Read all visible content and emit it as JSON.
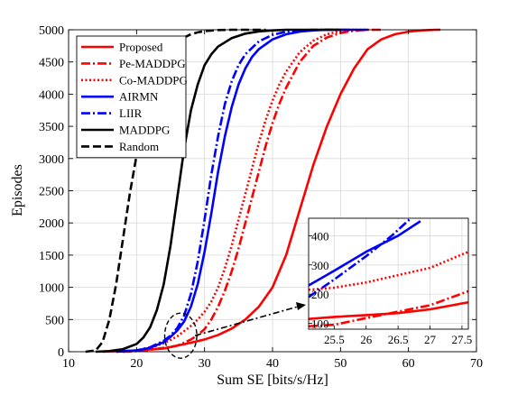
{
  "chart_data": {
    "type": "line",
    "title": "",
    "xlabel": "Sum SE [bits/s/Hz]",
    "ylabel": "Episodes",
    "xlim": [
      10,
      70
    ],
    "ylim": [
      0,
      5000
    ],
    "xticks": [
      10,
      20,
      30,
      40,
      50,
      60,
      70
    ],
    "yticks": [
      0,
      500,
      1000,
      1500,
      2000,
      2500,
      3000,
      3500,
      4000,
      4500,
      5000
    ],
    "grid": true,
    "legend_position": "top-left",
    "series": [
      {
        "name": "Proposed",
        "color": "#ff0000",
        "dash": "solid",
        "x": [
          15,
          20,
          24,
          26,
          28,
          30,
          32,
          34,
          36,
          38,
          40,
          42,
          44,
          46,
          48,
          50,
          52,
          54,
          56,
          58,
          60,
          62,
          64,
          64.7
        ],
        "y": [
          0,
          20,
          50,
          95,
          140,
          190,
          260,
          360,
          500,
          700,
          1000,
          1500,
          2200,
          2900,
          3500,
          4000,
          4400,
          4700,
          4850,
          4930,
          4970,
          4990,
          5000,
          5000
        ]
      },
      {
        "name": "Pe-MADDPG",
        "color": "#ff0000",
        "dash": "dashdot",
        "x": [
          18,
          20,
          22,
          24,
          25,
          26,
          27,
          28,
          29,
          30,
          31,
          32,
          33,
          34,
          35,
          36,
          37,
          38,
          39,
          40,
          41,
          42,
          44,
          46,
          48,
          50,
          52,
          54,
          56
        ],
        "y": [
          0,
          10,
          30,
          60,
          75,
          95,
          140,
          190,
          260,
          350,
          500,
          700,
          950,
          1250,
          1600,
          2000,
          2400,
          2800,
          3200,
          3550,
          3850,
          4100,
          4500,
          4750,
          4880,
          4950,
          4985,
          5000,
          5000
        ]
      },
      {
        "name": "Co-MADDPG",
        "color": "#ff0000",
        "dash": "dotted",
        "x": [
          18,
          20,
          22,
          24,
          25,
          26,
          27,
          28,
          29,
          30,
          31,
          32,
          33,
          34,
          35,
          36,
          37,
          38,
          39,
          40,
          41,
          42,
          44,
          46,
          48,
          50,
          52,
          54
        ],
        "y": [
          0,
          15,
          60,
          130,
          180,
          240,
          320,
          400,
          500,
          620,
          780,
          1000,
          1300,
          1650,
          2050,
          2450,
          2850,
          3250,
          3600,
          3900,
          4150,
          4350,
          4650,
          4830,
          4930,
          4980,
          5000,
          5000
        ]
      },
      {
        "name": "AIRMN",
        "color": "#0000ff",
        "dash": "solid",
        "x": [
          17,
          20,
          22,
          24,
          25,
          26,
          27,
          28,
          29,
          30,
          31,
          32,
          33,
          34,
          35,
          36,
          37,
          38,
          40,
          42,
          44,
          46,
          48,
          50,
          52,
          54
        ],
        "y": [
          0,
          20,
          60,
          150,
          230,
          330,
          470,
          700,
          1050,
          1550,
          2150,
          2800,
          3350,
          3800,
          4150,
          4400,
          4580,
          4700,
          4850,
          4930,
          4970,
          4990,
          5000,
          5000,
          5000,
          5000
        ]
      },
      {
        "name": "LIIR",
        "color": "#0000ff",
        "dash": "dashdot",
        "x": [
          17,
          20,
          22,
          24,
          25,
          26,
          27,
          28,
          29,
          30,
          31,
          32,
          33,
          34,
          35,
          36,
          38,
          40,
          42,
          44,
          46,
          48,
          50,
          52
        ],
        "y": [
          0,
          20,
          70,
          170,
          250,
          370,
          560,
          900,
          1400,
          2050,
          2750,
          3350,
          3850,
          4200,
          4450,
          4620,
          4820,
          4920,
          4970,
          4990,
          5000,
          5000,
          5000,
          5000
        ]
      },
      {
        "name": "MADDPG",
        "color": "#000000",
        "dash": "solid",
        "x": [
          14,
          16,
          18,
          20,
          21,
          22,
          23,
          24,
          25,
          26,
          27,
          28,
          29,
          30,
          31,
          32,
          34,
          36,
          38,
          40,
          42,
          44,
          46,
          48,
          50
        ],
        "y": [
          0,
          10,
          40,
          120,
          220,
          380,
          650,
          1050,
          1650,
          2400,
          3150,
          3750,
          4150,
          4450,
          4620,
          4740,
          4870,
          4940,
          4975,
          4990,
          5000,
          5000,
          5000,
          5000,
          5000
        ]
      },
      {
        "name": "Random",
        "color": "#000000",
        "dash": "dashed",
        "x": [
          12.5,
          14,
          15,
          16,
          17,
          18,
          19,
          20,
          21,
          22,
          23,
          24,
          25,
          26,
          27,
          28,
          29,
          30,
          32,
          34,
          36,
          38,
          39
        ],
        "y": [
          0,
          20,
          150,
          500,
          1050,
          1750,
          2450,
          3050,
          3550,
          3950,
          4250,
          4500,
          4680,
          4800,
          4880,
          4930,
          4960,
          4980,
          4995,
          5000,
          5000,
          5000,
          5000
        ]
      }
    ],
    "inset": {
      "xlim": [
        25.1,
        27.6
      ],
      "ylim": [
        80,
        460
      ],
      "xticks": [
        25.5,
        26,
        26.5,
        27,
        27.5
      ],
      "yticks": [
        100,
        200,
        300,
        400
      ],
      "source_region": {
        "x": [
          25.2,
          27.8
        ],
        "y": [
          40,
          460
        ]
      },
      "series": [
        {
          "name": "Proposed",
          "x": [
            25.1,
            25.5,
            26,
            26.5,
            27,
            27.6
          ],
          "y": [
            115,
            122,
            128,
            135,
            148,
            172
          ]
        },
        {
          "name": "Pe-MADDPG",
          "x": [
            25.1,
            25.5,
            26,
            26.5,
            27,
            27.6
          ],
          "y": [
            90,
            95,
            118,
            140,
            162,
            210
          ]
        },
        {
          "name": "Co-MADDPG",
          "x": [
            25.1,
            25.5,
            26,
            26.5,
            27,
            27.6
          ],
          "y": [
            215,
            222,
            240,
            265,
            290,
            345
          ]
        },
        {
          "name": "AIRMN",
          "x": [
            25.1,
            25.5,
            26,
            26.5,
            26.85
          ],
          "y": [
            230,
            280,
            345,
            400,
            450
          ]
        },
        {
          "name": "LIIR",
          "x": [
            25.1,
            25.5,
            26,
            26.4,
            26.7
          ],
          "y": [
            190,
            250,
            330,
            400,
            460
          ]
        }
      ]
    }
  }
}
